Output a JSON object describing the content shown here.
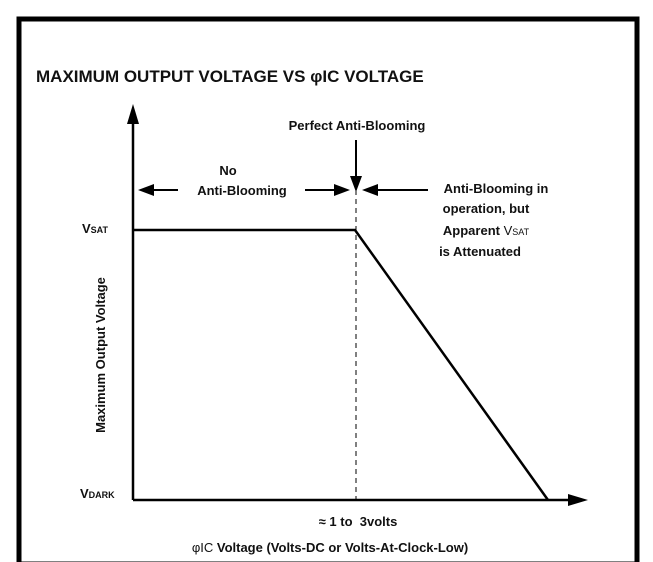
{
  "diagram": {
    "title": "MAXIMUM OUTPUT VOLTAGE VS φIC VOLTAGE",
    "y_axis_label": "Maximum Output Voltage",
    "x_axis_label": {
      "symbol": "φIC",
      "text": " Voltage (Volts-DC or Volts-At-Clock-Low)"
    },
    "y_levels": [
      {
        "main": "V",
        "sub": "SAT"
      },
      {
        "main": "V",
        "sub": "DARK"
      }
    ],
    "x_marker": "≈ 1 to  3volts",
    "annotations": {
      "perfect": "Perfect Anti-Blooming",
      "no": [
        "No",
        "Anti-Blooming"
      ],
      "operation": [
        "Anti-Blooming in",
        "operation, but",
        {
          "pre": "Apparent ",
          "main": "V",
          "sub": "SAT"
        },
        "is Attenuated"
      ]
    }
  }
}
